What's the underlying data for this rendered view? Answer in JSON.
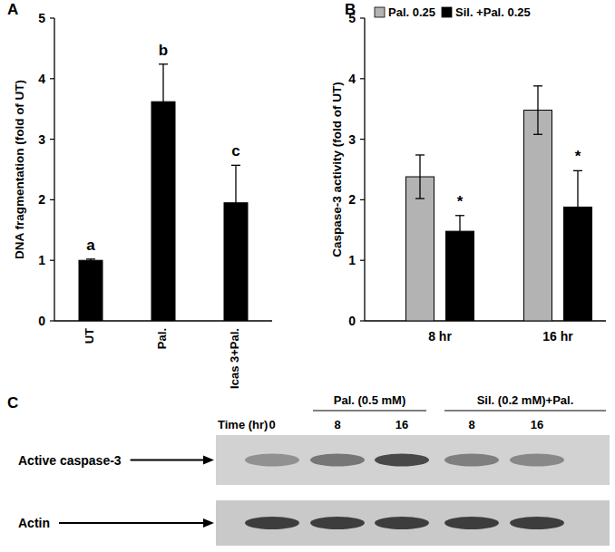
{
  "chart_data": [
    {
      "panel": "A",
      "type": "bar",
      "y_label": "DNA fragmentation (fold of UT)",
      "categories": [
        "UT",
        "Pal.",
        "Icas 3+Pal."
      ],
      "values": [
        1.0,
        3.62,
        1.95
      ],
      "errors": [
        0.02,
        0.62,
        0.62
      ],
      "annotations": [
        "a",
        "b",
        "c"
      ],
      "color": "#000000",
      "ylim": [
        0,
        5
      ],
      "yticks": [
        0,
        1,
        2,
        3,
        4,
        5
      ]
    },
    {
      "panel": "B",
      "type": "bar",
      "y_label": "Caspase-3 activity (fold of UT)",
      "categories": [
        "8 hr",
        "16 hr"
      ],
      "series": [
        {
          "name": "Pal. 0.25",
          "color": "#b3b3b3",
          "values": [
            2.38,
            3.48
          ],
          "errors": [
            0.36,
            0.4
          ]
        },
        {
          "name": "Sil. +Pal. 0.25",
          "color": "#000000",
          "values": [
            1.48,
            1.88
          ],
          "errors": [
            0.26,
            0.6
          ],
          "annotations": [
            "*",
            "*"
          ]
        }
      ],
      "ylim": [
        0,
        5
      ],
      "yticks": [
        0,
        1,
        2,
        3,
        4,
        5
      ],
      "legend": "top"
    }
  ],
  "blot": {
    "panel": "C",
    "time_label": "Time (hr)",
    "groups": [
      "Pal. (0.5 mM)",
      "Sil. (0.2 mM)+Pal."
    ],
    "lanes": [
      "0",
      "8",
      "16",
      "8",
      "16"
    ],
    "rows": [
      {
        "label": "Active caspase-3",
        "intensity": [
          0.35,
          0.5,
          0.75,
          0.45,
          0.4
        ]
      },
      {
        "label": "Actin",
        "intensity": [
          0.8,
          0.8,
          0.8,
          0.8,
          0.8
        ]
      }
    ]
  }
}
